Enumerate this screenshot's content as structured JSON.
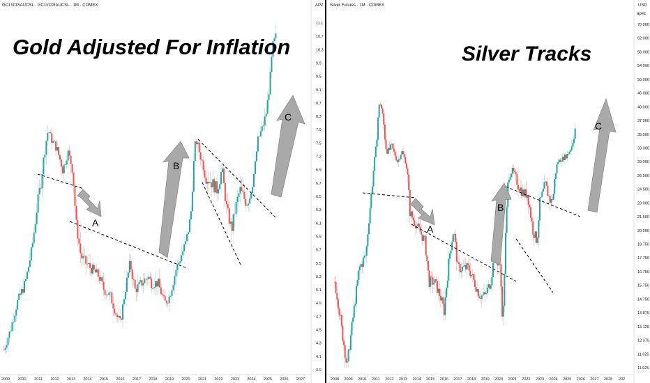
{
  "chart_data": [
    {
      "type": "candlestick",
      "header": "GC1!/CPIAUCSL · GC1!/CPIAUCSL · 1M · COMEX",
      "axis_unit": "APZ",
      "title": "Gold Adjusted For Inflation",
      "x_ticks": [
        "2009",
        "2010",
        "2011",
        "2012",
        "2013",
        "2014",
        "2015",
        "2016",
        "2017",
        "2018",
        "2019",
        "2020",
        "2021",
        "2022",
        "2023",
        "2024",
        "2025",
        "2026",
        "2027"
      ],
      "y_ticks": [
        "11.1",
        "10.7",
        "10.3",
        "9.9",
        "9.5",
        "9.1",
        "8.7",
        "8.3",
        "7.9",
        "7.5",
        "7.2",
        "6.9",
        "6.7",
        "6.5",
        "6.3",
        "6.1",
        "5.9",
        "5.7",
        "5.5",
        "5.3",
        "5.1",
        "4.9",
        "4.7",
        "4.5",
        "4.3",
        "4.1",
        "3.9"
      ],
      "ylim": [
        3.9,
        11.1
      ],
      "price_path": [
        [
          2008.9,
          4.2
        ],
        [
          2009.3,
          4.5
        ],
        [
          2009.7,
          4.9
        ],
        [
          2010.2,
          5.2
        ],
        [
          2010.6,
          5.7
        ],
        [
          2010.9,
          6.3
        ],
        [
          2011.2,
          6.8
        ],
        [
          2011.6,
          7.9
        ],
        [
          2011.8,
          7.6
        ],
        [
          2012.1,
          7.4
        ],
        [
          2012.5,
          6.9
        ],
        [
          2012.8,
          7.3
        ],
        [
          2013.1,
          6.9
        ],
        [
          2013.3,
          6.1
        ],
        [
          2013.6,
          5.6
        ],
        [
          2013.9,
          5.5
        ],
        [
          2014.3,
          5.4
        ],
        [
          2014.7,
          5.3
        ],
        [
          2015.0,
          5.1
        ],
        [
          2015.4,
          5.0
        ],
        [
          2015.8,
          4.7
        ],
        [
          2016.0,
          4.6
        ],
        [
          2016.3,
          5.1
        ],
        [
          2016.6,
          5.5
        ],
        [
          2016.9,
          5.1
        ],
        [
          2017.3,
          5.2
        ],
        [
          2017.7,
          5.3
        ],
        [
          2017.9,
          5.2
        ],
        [
          2018.3,
          5.2
        ],
        [
          2018.7,
          4.9
        ],
        [
          2019.0,
          5.0
        ],
        [
          2019.4,
          5.4
        ],
        [
          2019.7,
          5.6
        ],
        [
          2020.0,
          5.8
        ],
        [
          2020.3,
          6.2
        ],
        [
          2020.6,
          7.6
        ],
        [
          2020.9,
          7.2
        ],
        [
          2021.2,
          6.8
        ],
        [
          2021.6,
          6.7
        ],
        [
          2021.9,
          6.6
        ],
        [
          2022.2,
          6.9
        ],
        [
          2022.5,
          6.3
        ],
        [
          2022.8,
          6.0
        ],
        [
          2023.0,
          6.3
        ],
        [
          2023.3,
          6.6
        ],
        [
          2023.7,
          6.4
        ],
        [
          2023.9,
          6.5
        ],
        [
          2024.2,
          6.9
        ],
        [
          2024.4,
          7.6
        ],
        [
          2024.7,
          8.0
        ],
        [
          2024.9,
          8.4
        ],
        [
          2025.1,
          9.2
        ],
        [
          2025.3,
          10.4
        ],
        [
          2025.5,
          10.7
        ]
      ],
      "annotations": [
        "A",
        "B",
        "C"
      ]
    },
    {
      "type": "candlestick",
      "header": "Silver Futures · 1M · COMEX",
      "axis_unit": "USD",
      "axis_unit2": "apez",
      "title": "Silver Tracks",
      "x_ticks": [
        "2008",
        "2009",
        "2010",
        "2011",
        "2012",
        "2013",
        "2014",
        "2015",
        "2016",
        "2017",
        "2018",
        "2019",
        "2020",
        "2021",
        "2022",
        "2023",
        "2024",
        "2025",
        "2026",
        "2027",
        "2028",
        "202"
      ],
      "y_ticks": [
        "70.000",
        "62.000",
        "58.000",
        "54.000",
        "50.000",
        "46.000",
        "40.000",
        "37.000",
        "35.000",
        "33.000",
        "29.000",
        "26.000",
        "24.500",
        "23.000",
        "21.500",
        "20.000",
        "18.750",
        "17.750",
        "16.750",
        "15.750",
        "14.750",
        "13.875",
        "13.125",
        "12.375",
        "11.625",
        "11.025"
      ],
      "ylim": [
        11,
        70
      ],
      "price_path": [
        [
          2008.0,
          16
        ],
        [
          2008.5,
          13
        ],
        [
          2008.9,
          11
        ],
        [
          2009.4,
          14
        ],
        [
          2009.8,
          17
        ],
        [
          2010.3,
          18
        ],
        [
          2010.8,
          26
        ],
        [
          2011.3,
          42
        ],
        [
          2011.5,
          38
        ],
        [
          2011.8,
          32
        ],
        [
          2012.2,
          33
        ],
        [
          2012.6,
          29
        ],
        [
          2012.9,
          32
        ],
        [
          2013.2,
          29
        ],
        [
          2013.5,
          22
        ],
        [
          2013.8,
          21
        ],
        [
          2014.2,
          20
        ],
        [
          2014.6,
          19
        ],
        [
          2014.9,
          16
        ],
        [
          2015.3,
          16
        ],
        [
          2015.7,
          15
        ],
        [
          2016.0,
          14
        ],
        [
          2016.4,
          18
        ],
        [
          2016.7,
          20
        ],
        [
          2017.0,
          17
        ],
        [
          2017.4,
          17
        ],
        [
          2017.8,
          17
        ],
        [
          2018.2,
          16
        ],
        [
          2018.6,
          15
        ],
        [
          2019.0,
          15
        ],
        [
          2019.4,
          16
        ],
        [
          2019.7,
          18
        ],
        [
          2020.1,
          17
        ],
        [
          2020.3,
          13
        ],
        [
          2020.7,
          26
        ],
        [
          2021.0,
          27
        ],
        [
          2021.4,
          25
        ],
        [
          2021.8,
          24
        ],
        [
          2022.1,
          24
        ],
        [
          2022.5,
          20
        ],
        [
          2022.8,
          19
        ],
        [
          2023.0,
          23
        ],
        [
          2023.4,
          25
        ],
        [
          2023.8,
          23
        ],
        [
          2024.0,
          24
        ],
        [
          2024.3,
          29
        ],
        [
          2024.7,
          30
        ],
        [
          2025.0,
          31
        ],
        [
          2025.3,
          33
        ],
        [
          2025.6,
          36
        ]
      ],
      "annotations": [
        "A",
        "B",
        "C"
      ]
    }
  ]
}
